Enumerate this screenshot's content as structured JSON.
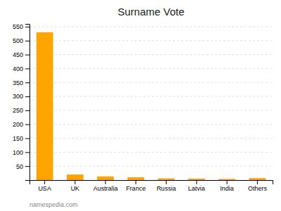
{
  "chart_data": {
    "type": "bar",
    "title": "Surname Vote",
    "categories": [
      "USA",
      "UK",
      "Australia",
      "France",
      "Russia",
      "Latvia",
      "India",
      "Others"
    ],
    "values": [
      530,
      20,
      13,
      10,
      6,
      5,
      4,
      7
    ],
    "color": "#FFA500",
    "ylim": [
      0,
      560
    ],
    "yticks": [
      50,
      100,
      150,
      200,
      250,
      300,
      350,
      400,
      450,
      500,
      550
    ],
    "grid": true,
    "annotations": [
      "namespedia.com"
    ]
  }
}
